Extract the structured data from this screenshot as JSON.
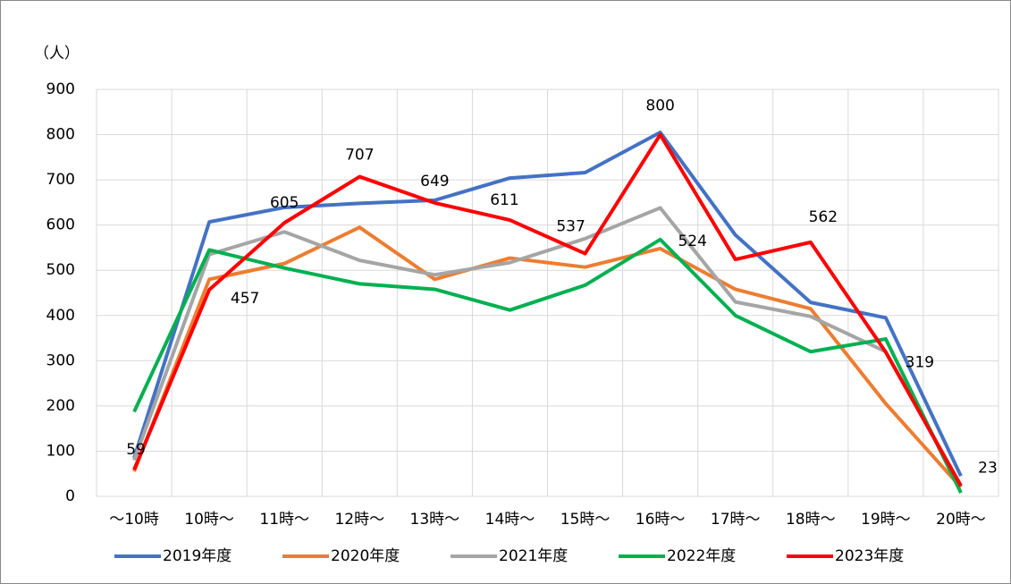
{
  "chart_data": {
    "type": "line",
    "y_label": "（人）",
    "categories": [
      "～10時",
      "10時～",
      "11時～",
      "12時～",
      "13時～",
      "14時～",
      "15時～",
      "16時～",
      "17時～",
      "18時～",
      "19時～",
      "20時～"
    ],
    "series": [
      {
        "name": "2019年度",
        "color": "#4472c4",
        "values": [
          85,
          607,
          639,
          648,
          655,
          704,
          716,
          805,
          578,
          429,
          395,
          45
        ]
      },
      {
        "name": "2020年度",
        "color": "#ed7d31",
        "values": [
          55,
          480,
          515,
          595,
          480,
          527,
          507,
          548,
          458,
          415,
          205,
          20
        ]
      },
      {
        "name": "2021年度",
        "color": "#a5a5a5",
        "values": [
          80,
          535,
          585,
          522,
          490,
          517,
          570,
          638,
          430,
          398,
          320,
          25
        ]
      },
      {
        "name": "2022年度",
        "color": "#00b050",
        "values": [
          187,
          545,
          505,
          470,
          458,
          412,
          467,
          568,
          400,
          320,
          348,
          8
        ]
      },
      {
        "name": "2023年度",
        "color": "#ff0000",
        "values": [
          59,
          457,
          605,
          707,
          649,
          611,
          537,
          800,
          524,
          562,
          319,
          23
        ],
        "show_labels": true
      }
    ],
    "ylim": [
      0,
      900
    ],
    "yticks": [
      0,
      100,
      200,
      300,
      400,
      500,
      600,
      700,
      800,
      900
    ],
    "grid": true
  }
}
